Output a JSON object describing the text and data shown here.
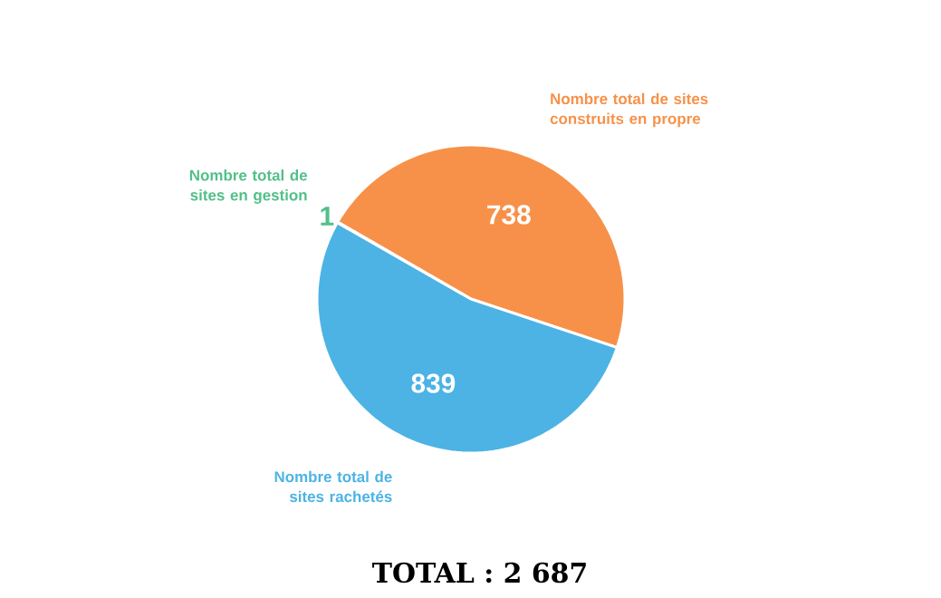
{
  "chart_data": {
    "type": "pie",
    "categories": [
      "Nombre total de sites construits en propre",
      "Nombre total de sites rachetés",
      "Nombre total de sites en gestion"
    ],
    "values": [
      738,
      839,
      1
    ],
    "colors": [
      "#f79149",
      "#4cb3e4",
      "#52bf88"
    ],
    "data_labels": true,
    "annotations": [
      "TOTAL : 2 687"
    ]
  }
}
